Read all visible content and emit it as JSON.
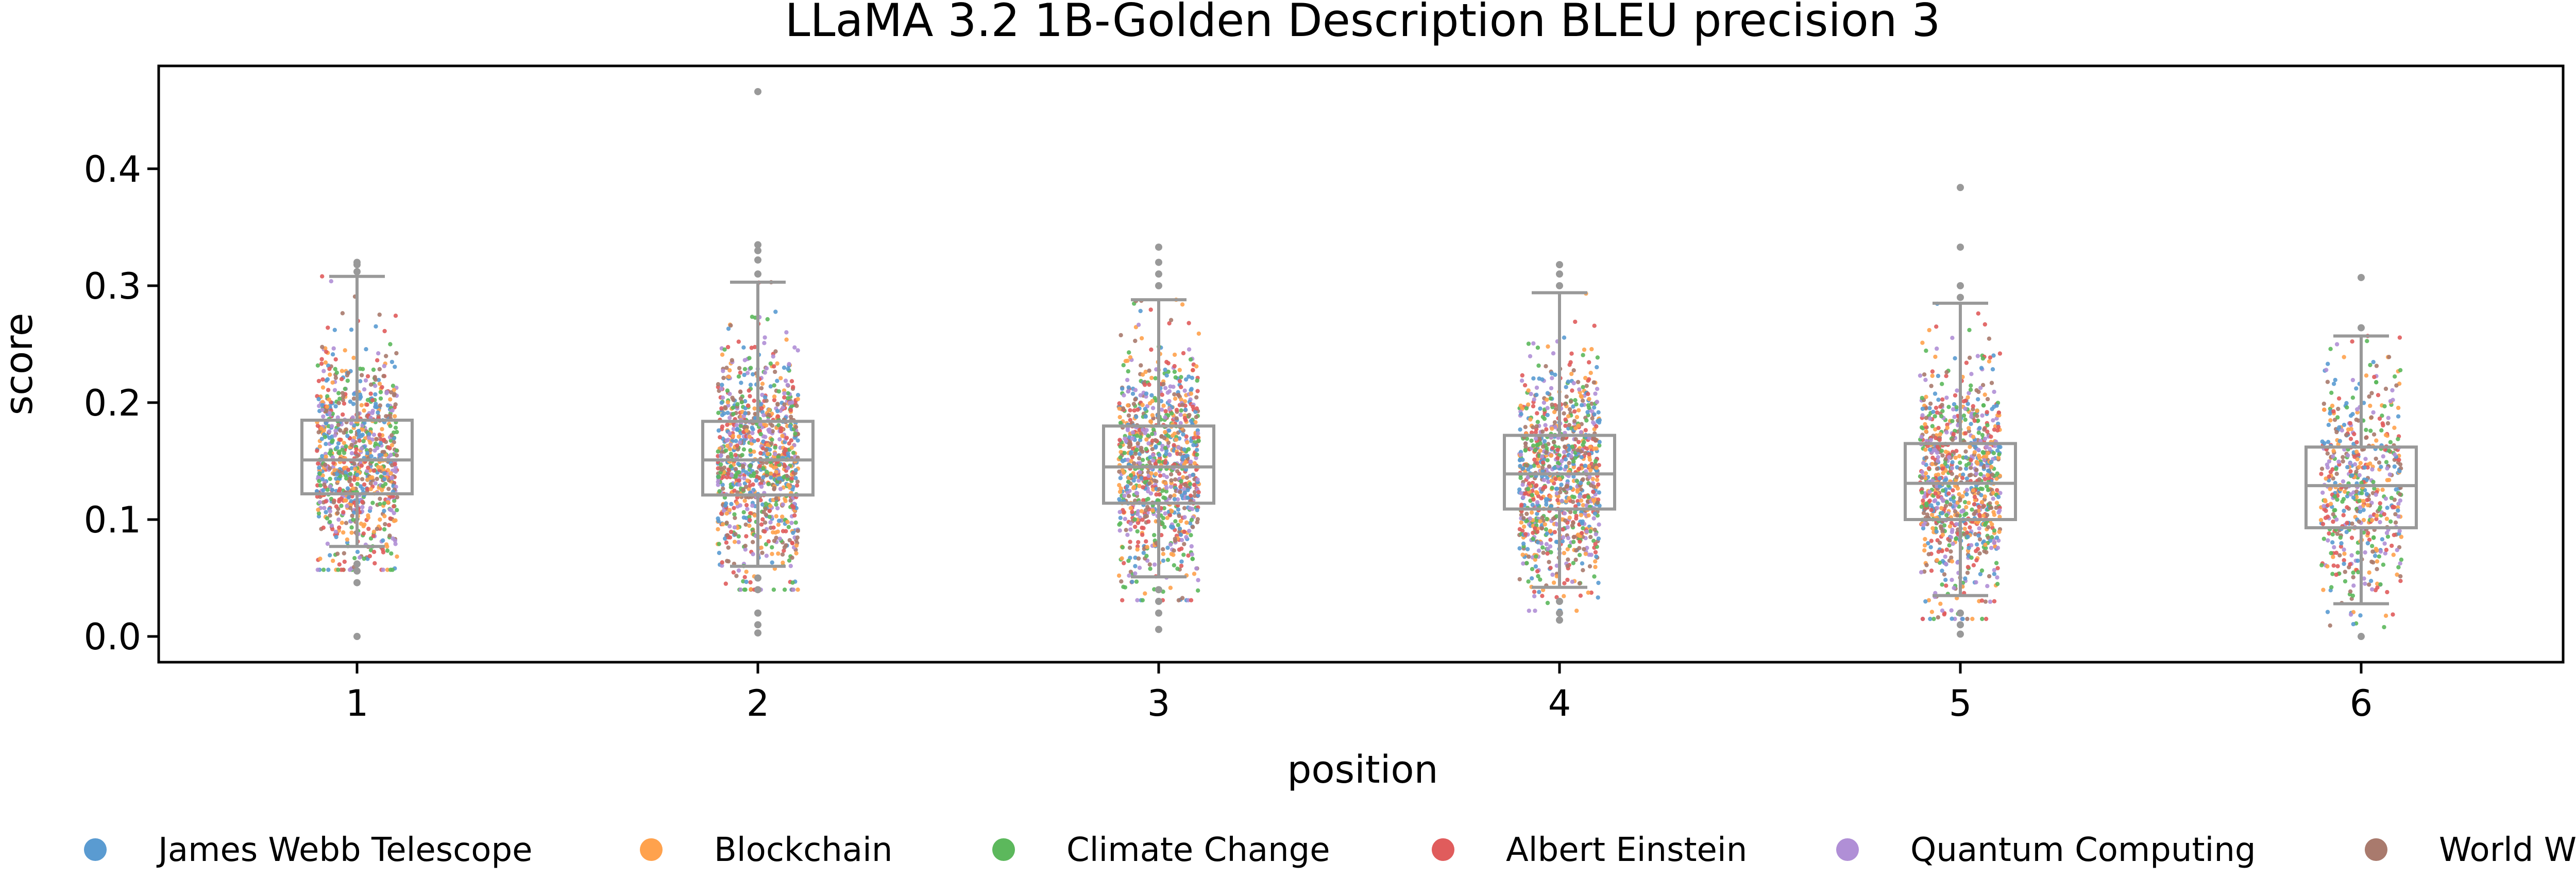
{
  "chart_data": {
    "type": "box",
    "title": "LLaMA 3.2 1B-Golden Description BLEU precision 3",
    "xlabel": "position",
    "ylabel": "score",
    "categories": [
      "1",
      "2",
      "3",
      "4",
      "5",
      "6"
    ],
    "ylim": [
      -0.022,
      0.488
    ],
    "yticks": [
      "0.0",
      "0.1",
      "0.2",
      "0.3",
      "0.4"
    ],
    "grid": false,
    "legend_placement": "bottom",
    "box_color": "#999999",
    "boxes": [
      {
        "position": "1",
        "whisker_low": 0.077,
        "q1": 0.122,
        "median": 0.151,
        "q3": 0.185,
        "whisker_high": 0.308,
        "outliers": [
          0.0,
          0.046,
          0.056,
          0.062,
          0.312,
          0.318,
          0.32
        ]
      },
      {
        "position": "2",
        "whisker_low": 0.06,
        "q1": 0.121,
        "median": 0.151,
        "q3": 0.184,
        "whisker_high": 0.303,
        "outliers": [
          0.003,
          0.01,
          0.02,
          0.04,
          0.05,
          0.31,
          0.322,
          0.33,
          0.335,
          0.466
        ]
      },
      {
        "position": "3",
        "whisker_low": 0.051,
        "q1": 0.114,
        "median": 0.145,
        "q3": 0.18,
        "whisker_high": 0.288,
        "outliers": [
          0.006,
          0.02,
          0.03,
          0.04,
          0.3,
          0.31,
          0.32,
          0.333
        ]
      },
      {
        "position": "4",
        "whisker_low": 0.042,
        "q1": 0.109,
        "median": 0.139,
        "q3": 0.172,
        "whisker_high": 0.294,
        "outliers": [
          0.014,
          0.02,
          0.03,
          0.3,
          0.31,
          0.318
        ]
      },
      {
        "position": "5",
        "whisker_low": 0.035,
        "q1": 0.1,
        "median": 0.131,
        "q3": 0.165,
        "whisker_high": 0.285,
        "outliers": [
          0.002,
          0.01,
          0.02,
          0.29,
          0.3,
          0.333,
          0.384
        ]
      },
      {
        "position": "6",
        "whisker_low": 0.028,
        "q1": 0.093,
        "median": 0.129,
        "q3": 0.162,
        "whisker_high": 0.257,
        "outliers": [
          0.0,
          0.264,
          0.307
        ]
      }
    ],
    "series": [
      {
        "name": "James Webb Telescope",
        "color": "#5a9bd1"
      },
      {
        "name": "Blockchain",
        "color": "#ffa24d"
      },
      {
        "name": "Climate Change",
        "color": "#5cb85c"
      },
      {
        "name": "Albert Einstein",
        "color": "#e05c5c"
      },
      {
        "name": "Quantum Computing",
        "color": "#b08fd6"
      },
      {
        "name": "World War II",
        "color": "#a97a6d"
      }
    ],
    "points_per_position": [
      900,
      1000,
      950,
      950,
      900,
      550
    ]
  }
}
